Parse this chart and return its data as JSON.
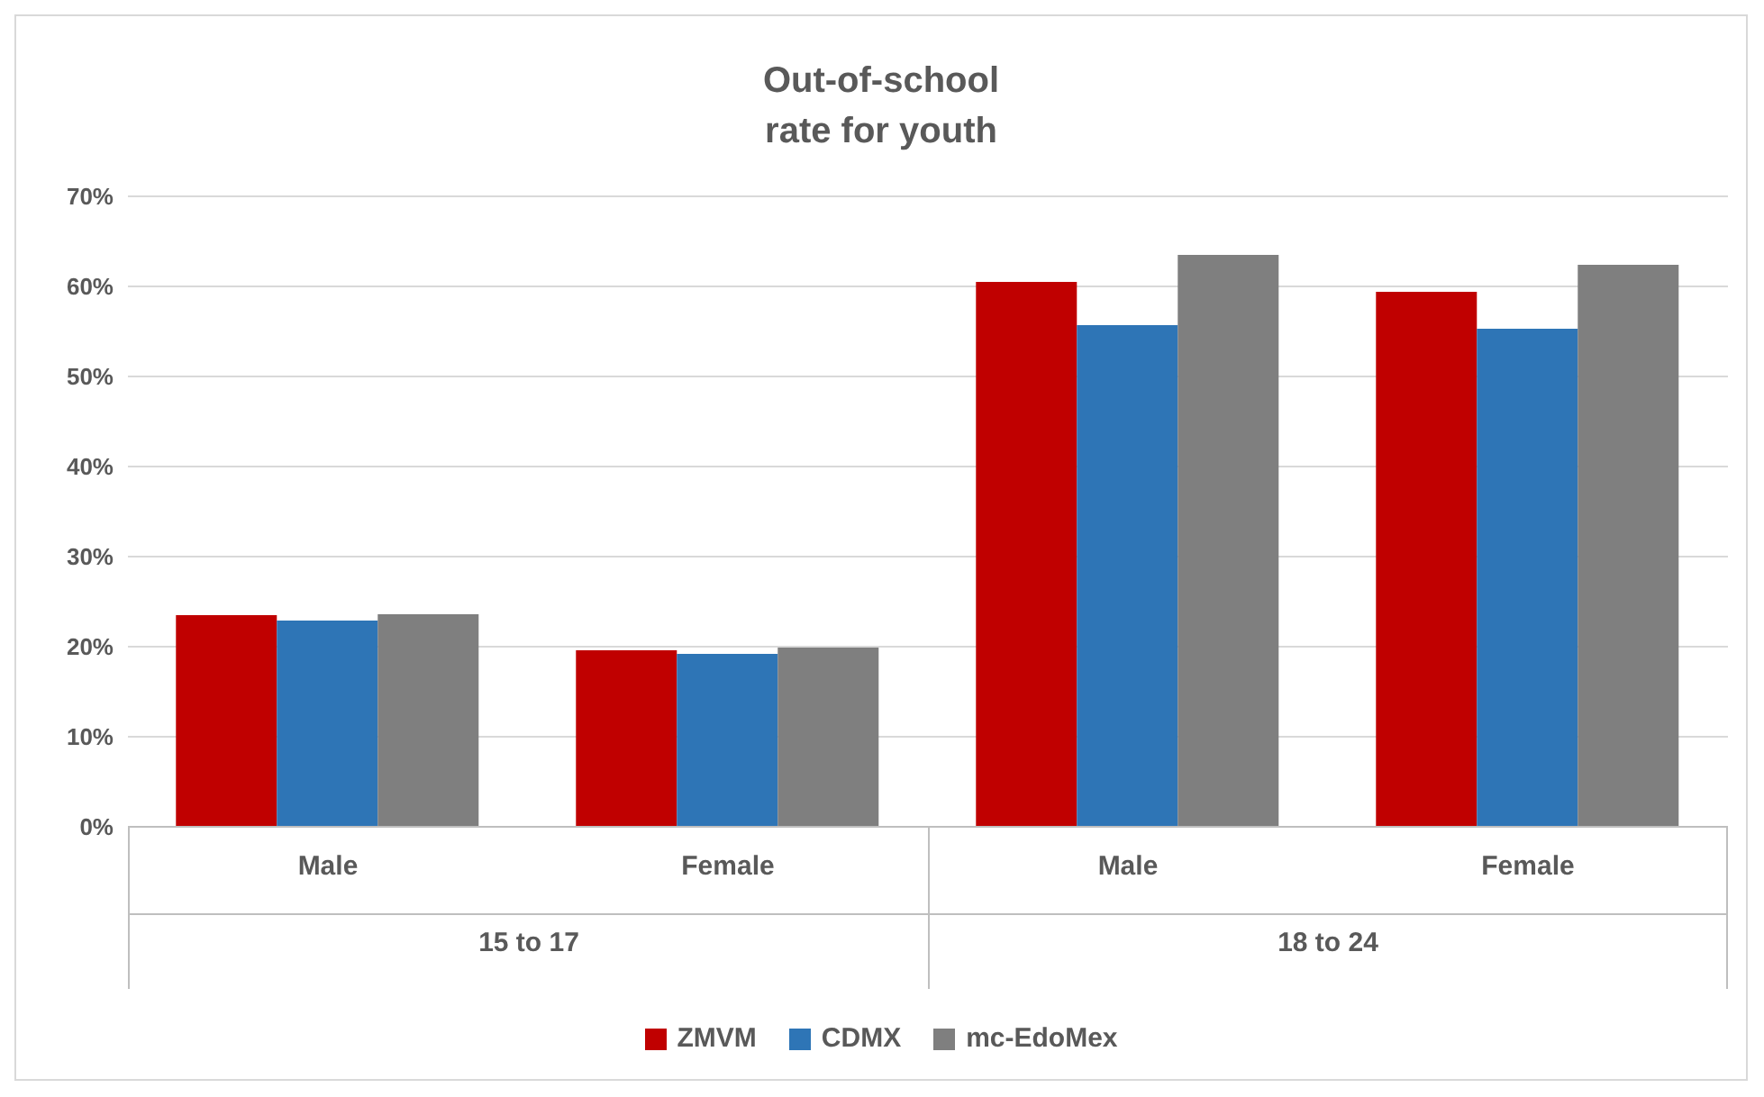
{
  "chart_data": {
    "type": "bar",
    "title": "Out-of-school rate for youth",
    "categories": [
      "Male",
      "Female",
      "Male",
      "Female"
    ],
    "series": [
      {
        "name": "ZMVM",
        "color": "#c00000",
        "values": [
          23.5,
          19.6,
          60.5,
          59.4
        ]
      },
      {
        "name": "CDMX",
        "color": "#2e75b6",
        "values": [
          22.9,
          19.2,
          55.7,
          55.3
        ]
      },
      {
        "name": "mc-EdoMex",
        "color": "#7f7f7f",
        "values": [
          23.6,
          19.9,
          63.5,
          62.4
        ]
      }
    ],
    "annotations": [
      "15 to 17",
      "18 to 24"
    ],
    "ylim": [
      0,
      70
    ],
    "yticks": [
      {
        "value": 0,
        "label": "0%"
      },
      {
        "value": 10,
        "label": "10%"
      },
      {
        "value": 20,
        "label": "20%"
      },
      {
        "value": 30,
        "label": "30%"
      },
      {
        "value": 40,
        "label": "40%"
      },
      {
        "value": 50,
        "label": "50%"
      },
      {
        "value": 60,
        "label": "60%"
      },
      {
        "value": 70,
        "label": "70%"
      }
    ],
    "grid": "y",
    "legend": "bottom"
  }
}
